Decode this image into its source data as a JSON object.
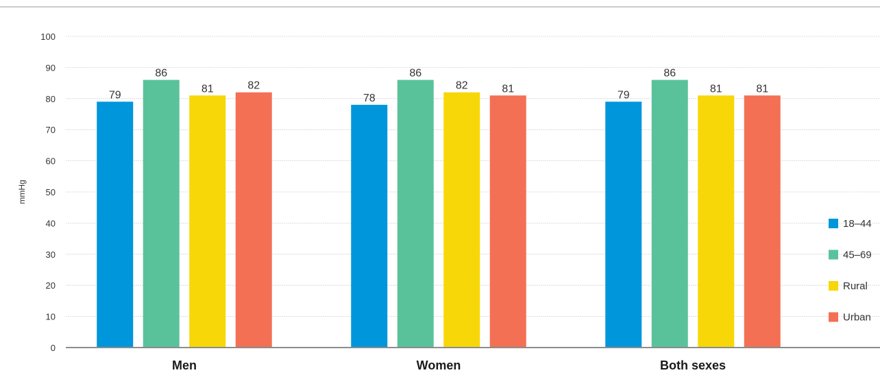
{
  "chart_data": {
    "type": "bar",
    "title": "",
    "xlabel": "",
    "ylabel": "mmHg",
    "ylim": [
      0,
      100
    ],
    "yticks": [
      0,
      10,
      20,
      30,
      40,
      50,
      60,
      70,
      80,
      90,
      100
    ],
    "grid": true,
    "legend_position": "right",
    "categories": [
      "Men",
      "Women",
      "Both sexes"
    ],
    "series": [
      {
        "name": "18–44",
        "color": "#0096db",
        "values": [
          79,
          78,
          79
        ]
      },
      {
        "name": "45–69",
        "color": "#5ac29b",
        "values": [
          86,
          86,
          86
        ]
      },
      {
        "name": "Rural",
        "color": "#f7d708",
        "values": [
          81,
          82,
          81
        ]
      },
      {
        "name": "Urban",
        "color": "#f37055",
        "values": [
          82,
          81,
          81
        ]
      }
    ]
  }
}
